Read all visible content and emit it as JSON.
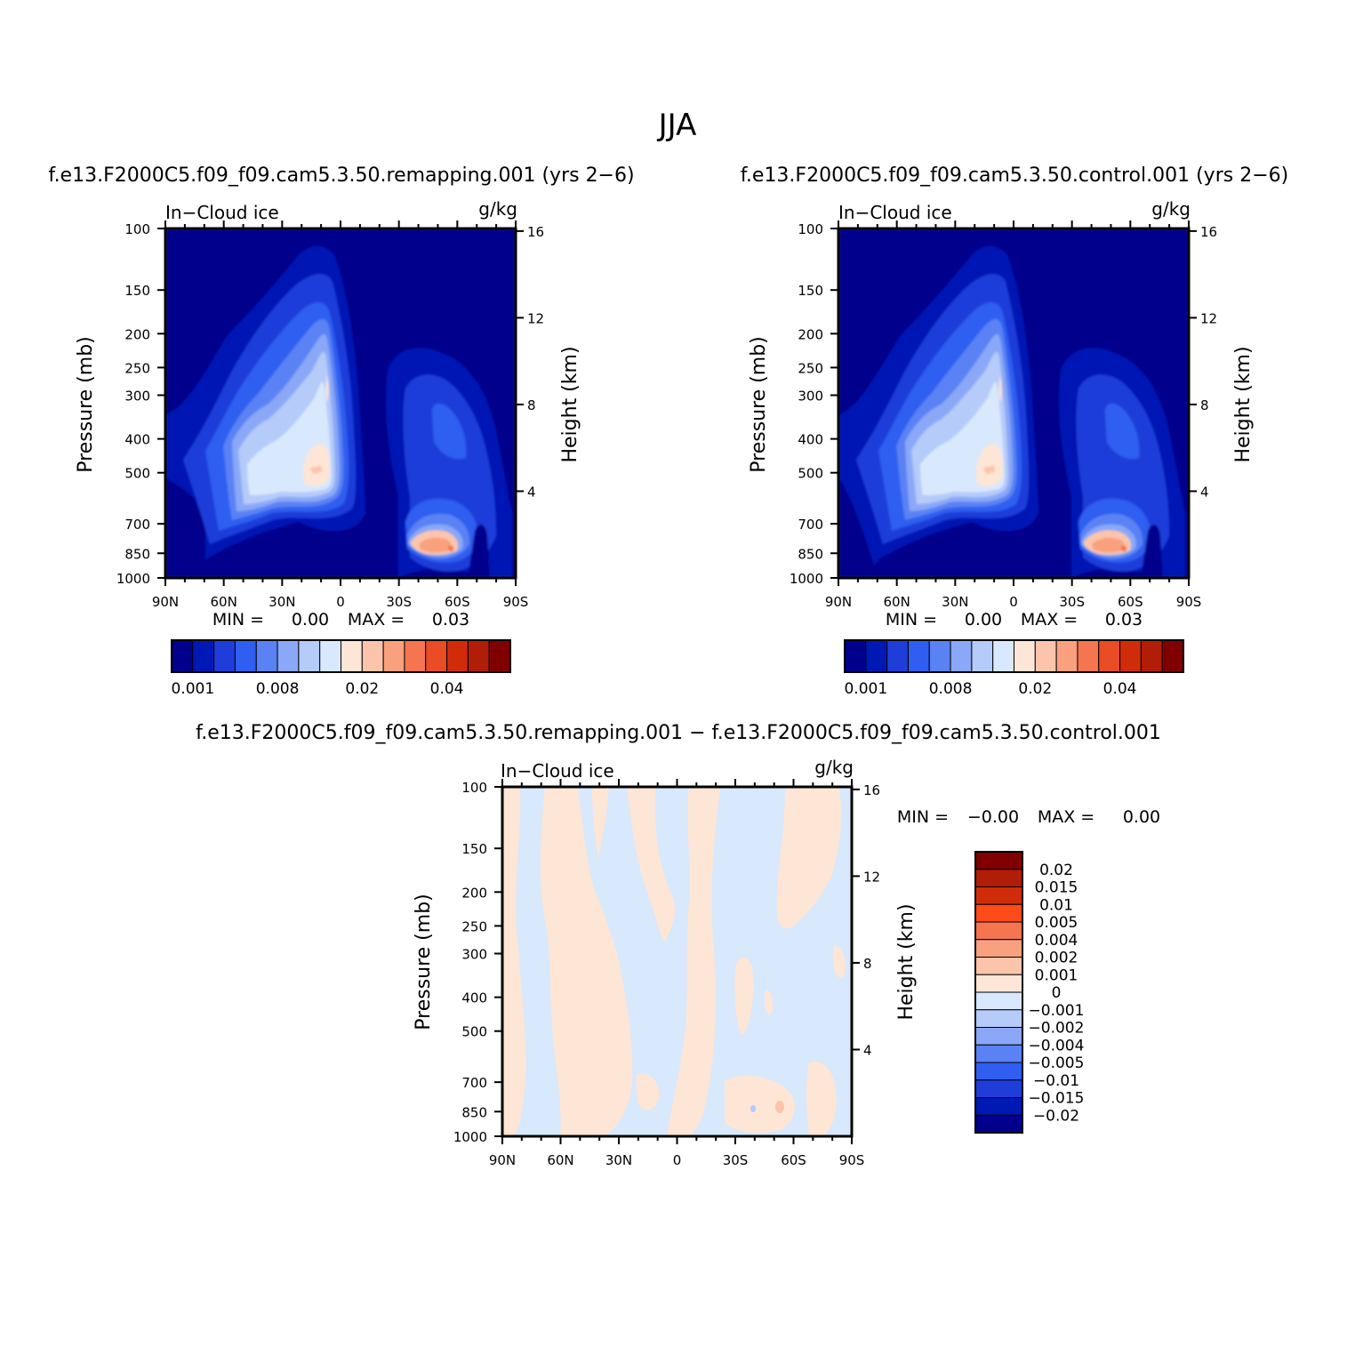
{
  "figure": {
    "title": "JJA"
  },
  "chart_data": [
    {
      "type": "heatmap",
      "panel": "top-left",
      "title": "f.e13.F2000C5.f09_f09.cam5.3.50.remapping.001  (yrs 2−6)",
      "variable": "In−Cloud ice",
      "units": "g/kg",
      "ylabel": "Pressure (mb)",
      "ylabel_right": "Height (km)",
      "x_ticks": [
        "90N",
        "60N",
        "30N",
        "0",
        "30S",
        "60S",
        "90S"
      ],
      "x_range": [
        90,
        -90
      ],
      "y_ticks": [
        "100",
        "150",
        "200",
        "250",
        "300",
        "400",
        "500",
        "700",
        "850",
        "1000"
      ],
      "y_range_mb": [
        100,
        1000
      ],
      "height_ticks": [
        "16",
        "12",
        "8",
        "4"
      ],
      "min_label": "MIN =",
      "min_value": "0.00",
      "max_label": "MAX =",
      "max_value": "0.03",
      "features": [
        {
          "region": "tropical/NH upper cloud column",
          "lat": 15,
          "pressure_mb": 500,
          "value": 0.02
        },
        {
          "region": "SH low-level maximum",
          "lat": -55,
          "pressure_mb": 830,
          "value": 0.03
        }
      ],
      "colorbar": {
        "orientation": "horizontal",
        "labels": [
          "0.001",
          "0.008",
          "0.02",
          "0.04"
        ],
        "colors": [
          "#00008c",
          "#0019b4",
          "#1f3dd9",
          "#2f5ef0",
          "#5a82f5",
          "#8aa8f7",
          "#b5cbfa",
          "#d8e8fd",
          "#fde6d6",
          "#fcc5ab",
          "#f9a07f",
          "#f57550",
          "#ea4c25",
          "#d12c0a",
          "#b11d06",
          "#800000"
        ]
      }
    },
    {
      "type": "heatmap",
      "panel": "top-right",
      "title": "f.e13.F2000C5.f09_f09.cam5.3.50.control.001  (yrs 2−6)",
      "variable": "In−Cloud ice",
      "units": "g/kg",
      "ylabel": "Pressure (mb)",
      "ylabel_right": "Height (km)",
      "x_ticks": [
        "90N",
        "60N",
        "30N",
        "0",
        "30S",
        "60S",
        "90S"
      ],
      "x_range": [
        90,
        -90
      ],
      "y_ticks": [
        "100",
        "150",
        "200",
        "250",
        "300",
        "400",
        "500",
        "700",
        "850",
        "1000"
      ],
      "y_range_mb": [
        100,
        1000
      ],
      "height_ticks": [
        "16",
        "12",
        "8",
        "4"
      ],
      "min_label": "MIN =",
      "min_value": "0.00",
      "max_label": "MAX =",
      "max_value": "0.03",
      "features": [
        {
          "region": "tropical/NH upper cloud column",
          "lat": 15,
          "pressure_mb": 500,
          "value": 0.02
        },
        {
          "region": "SH low-level maximum",
          "lat": -55,
          "pressure_mb": 830,
          "value": 0.03
        }
      ],
      "colorbar": {
        "orientation": "horizontal",
        "labels": [
          "0.001",
          "0.008",
          "0.02",
          "0.04"
        ],
        "colors": [
          "#00008c",
          "#0019b4",
          "#1f3dd9",
          "#2f5ef0",
          "#5a82f5",
          "#8aa8f7",
          "#b5cbfa",
          "#d8e8fd",
          "#fde6d6",
          "#fcc5ab",
          "#f9a07f",
          "#f57550",
          "#ea4c25",
          "#d12c0a",
          "#b11d06",
          "#800000"
        ]
      }
    },
    {
      "type": "heatmap",
      "panel": "bottom-difference",
      "title": "f.e13.F2000C5.f09_f09.cam5.3.50.remapping.001 − f.e13.F2000C5.f09_f09.cam5.3.50.control.001",
      "variable": "In−Cloud ice",
      "units": "g/kg",
      "ylabel": "Pressure (mb)",
      "ylabel_right": "Height (km)",
      "x_ticks": [
        "90N",
        "60N",
        "30N",
        "0",
        "30S",
        "60S",
        "90S"
      ],
      "x_range": [
        90,
        -90
      ],
      "y_ticks": [
        "100",
        "150",
        "200",
        "250",
        "300",
        "400",
        "500",
        "700",
        "850",
        "1000"
      ],
      "y_range_mb": [
        100,
        1000
      ],
      "height_ticks": [
        "16",
        "12",
        "8",
        "4"
      ],
      "min_label": "MIN =",
      "min_value": "−0.00",
      "max_label": "MAX =",
      "max_value": "0.00",
      "features": [
        {
          "region": "positive columns (0 to 0.001)",
          "lats": [
            80,
            40,
            15,
            -5,
            -50
          ],
          "value": 0.0005
        },
        {
          "region": "negative background (-0.001 to 0)",
          "value": -0.0005
        },
        {
          "region": "small positive spot",
          "lat": -55,
          "pressure_mb": 850,
          "value": 0.002
        }
      ],
      "colorbar": {
        "orientation": "vertical",
        "labels": [
          "0.02",
          "0.015",
          "0.01",
          "0.005",
          "0.004",
          "0.002",
          "0.001",
          "0",
          "−0.001",
          "−0.002",
          "−0.004",
          "−0.005",
          "−0.01",
          "−0.015",
          "−0.02"
        ],
        "colors": [
          "#800000",
          "#b11d06",
          "#d12c0a",
          "#ff4a1a",
          "#f57550",
          "#f9a07f",
          "#fcc5ab",
          "#fde6d6",
          "#d8e8fd",
          "#b5cbfa",
          "#8aa8f7",
          "#5a82f5",
          "#2f5ef0",
          "#1f3dd9",
          "#0019b4",
          "#00008c"
        ]
      }
    }
  ]
}
